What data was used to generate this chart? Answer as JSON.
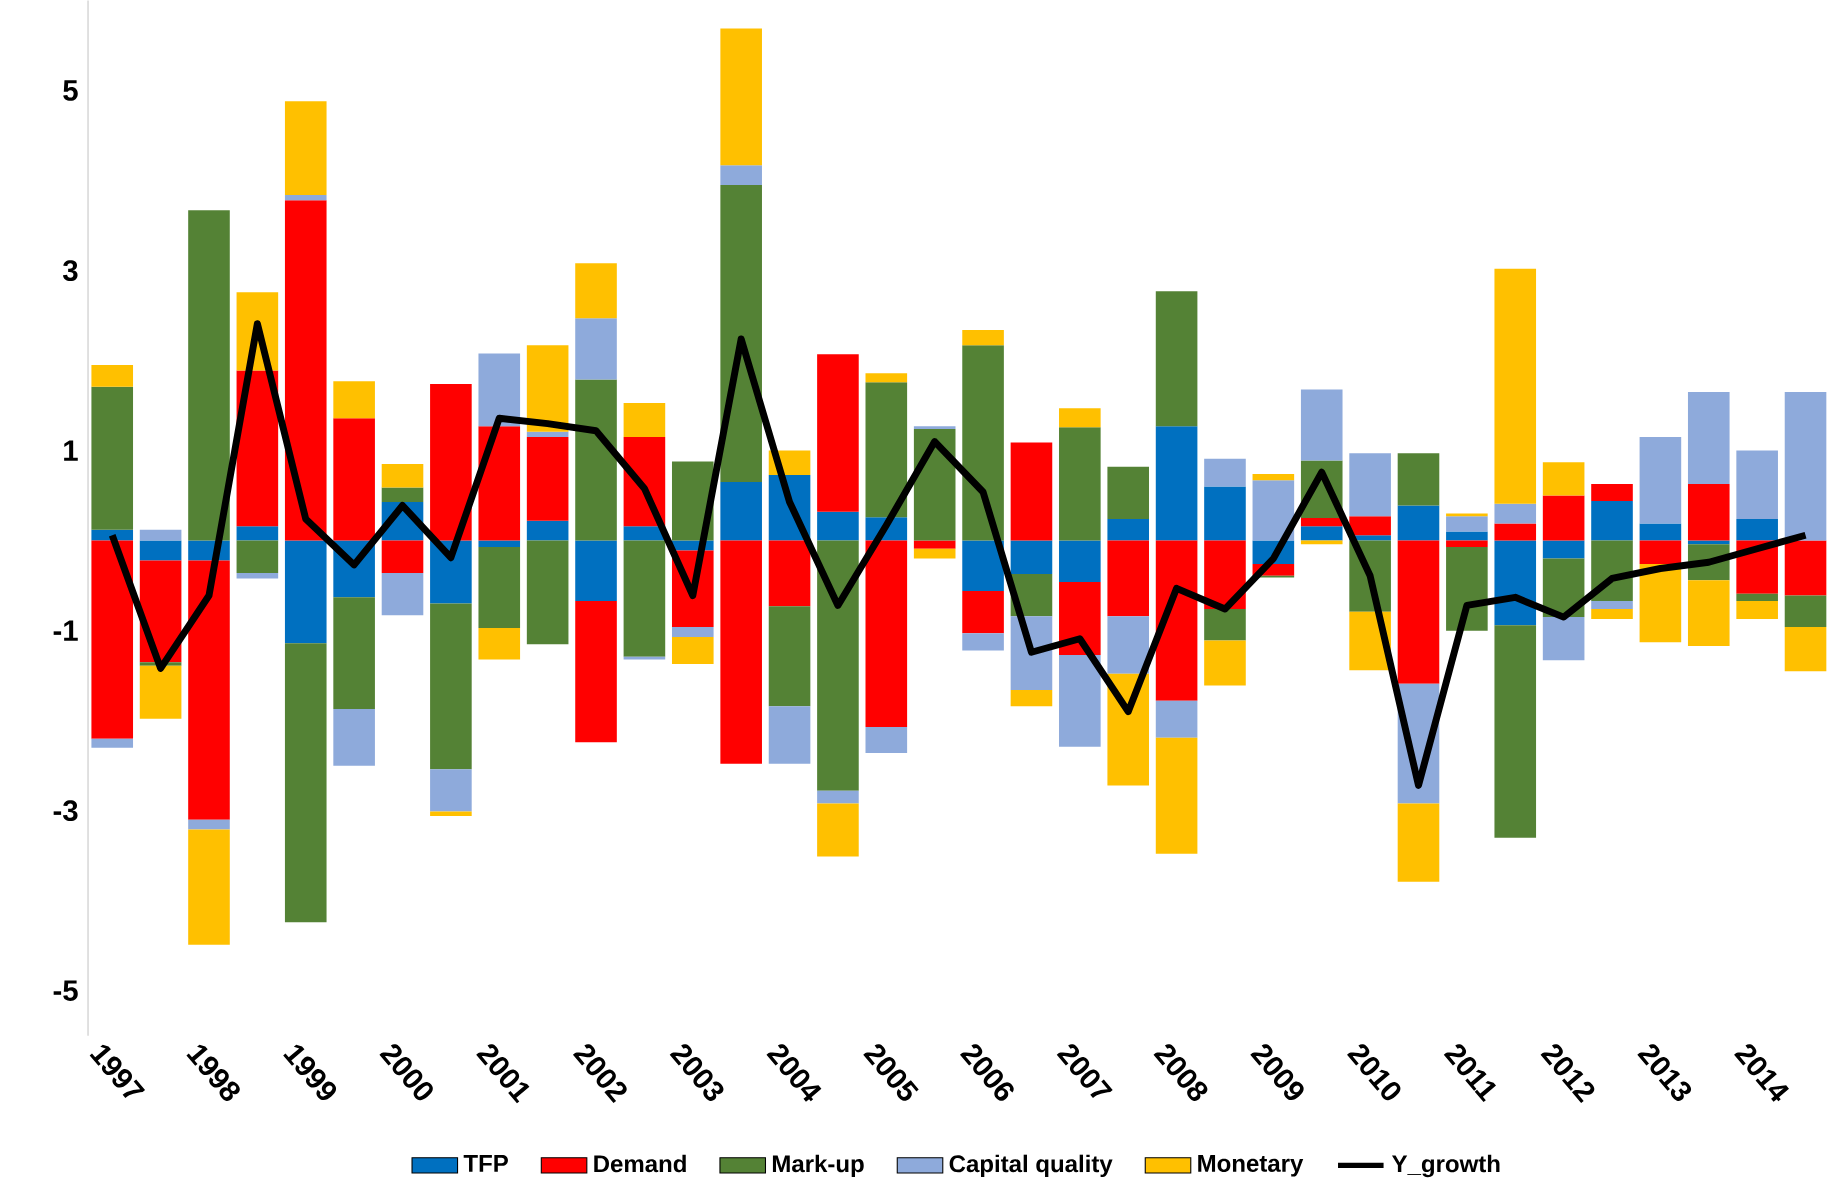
{
  "chart_data": {
    "type": "bar",
    "stacked": true,
    "legend": "bottom",
    "categories": [
      "1997",
      null,
      "1998",
      null,
      "1999",
      null,
      "2000",
      null,
      "2001",
      null,
      "2002",
      null,
      "2003",
      null,
      "2004",
      null,
      "2005",
      null,
      "2006",
      null,
      "2007",
      null,
      "2008",
      null,
      "2009",
      null,
      "2010",
      null,
      "2011",
      null,
      "2012",
      null,
      "2013",
      null,
      "2014",
      null
    ],
    "ylim": [
      -5.5,
      6
    ],
    "yticks": [
      -5,
      -3,
      -1,
      1,
      3,
      5
    ],
    "series": [
      {
        "name": "TFP",
        "color": "#0070c0",
        "values": [
          0.12,
          -0.22,
          -0.22,
          0.16,
          -1.14,
          -0.63,
          0.43,
          -0.7,
          -0.07,
          0.22,
          -0.67,
          0.16,
          -0.11,
          0.65,
          0.73,
          0.32,
          0.26,
          null,
          -0.56,
          -0.37,
          -0.46,
          0.24,
          1.27,
          0.6,
          -0.26,
          0.16,
          0.06,
          0.39,
          0.1,
          -0.94,
          -0.2,
          0.44,
          0.19,
          -0.04,
          0.24,
          null
        ]
      },
      {
        "name": "Demand",
        "color": "#ff0000",
        "values": [
          -2.2,
          -1.13,
          -2.88,
          1.73,
          3.78,
          1.36,
          -0.36,
          1.74,
          1.27,
          0.93,
          -1.57,
          0.99,
          -0.85,
          -2.48,
          -0.73,
          1.75,
          -2.07,
          -0.09,
          -0.47,
          1.09,
          -0.81,
          -0.84,
          -1.78,
          -0.76,
          -0.13,
          0.09,
          0.21,
          -1.59,
          -0.07,
          0.19,
          0.5,
          0.19,
          -0.26,
          0.63,
          -0.59,
          -0.61
        ]
      },
      {
        "name": "Mark-up",
        "color": "#548235",
        "values": [
          1.59,
          -0.04,
          3.67,
          -0.36,
          -3.1,
          -1.24,
          0.16,
          -1.84,
          -0.9,
          -1.15,
          1.79,
          -1.29,
          0.88,
          3.3,
          -1.11,
          -2.78,
          1.5,
          1.24,
          2.17,
          -0.47,
          1.26,
          0.58,
          1.5,
          -0.35,
          -0.02,
          0.64,
          -0.79,
          0.58,
          -0.93,
          -2.36,
          -0.65,
          -0.67,
          null,
          -0.4,
          -0.08,
          -0.35
        ]
      },
      {
        "name": "Capital quality",
        "color": "#8eaadb",
        "values": [
          -0.1,
          0.12,
          -0.11,
          -0.06,
          0.06,
          -0.63,
          -0.47,
          -0.47,
          0.81,
          0.06,
          0.68,
          -0.03,
          -0.11,
          0.22,
          -0.64,
          -0.14,
          -0.29,
          0.03,
          -0.19,
          -0.82,
          -1.02,
          -0.64,
          -0.41,
          0.31,
          0.67,
          0.79,
          0.7,
          -1.33,
          0.17,
          0.22,
          -0.48,
          -0.09,
          0.96,
          1.02,
          0.76,
          1.65
        ]
      },
      {
        "name": "Monetary",
        "color": "#ffc000",
        "values": [
          0.24,
          -0.59,
          -1.28,
          0.87,
          1.04,
          0.41,
          0.26,
          -0.05,
          -0.35,
          0.96,
          0.61,
          0.38,
          -0.3,
          1.52,
          0.27,
          -0.59,
          0.1,
          -0.11,
          0.17,
          -0.18,
          0.21,
          -1.24,
          -1.29,
          -0.5,
          0.07,
          -0.04,
          -0.65,
          -0.87,
          0.03,
          2.61,
          0.37,
          -0.11,
          -0.87,
          -0.73,
          -0.2,
          -0.49
        ]
      },
      {
        "name": "Y_growth",
        "type": "line",
        "color": "#000000",
        "values": [
          0.06,
          -1.42,
          -0.61,
          2.41,
          0.24,
          -0.27,
          0.39,
          -0.19,
          1.36,
          1.3,
          1.22,
          0.58,
          -0.61,
          2.24,
          0.43,
          -0.72,
          0.17,
          1.1,
          0.54,
          -1.24,
          -1.09,
          -1.9,
          -0.53,
          -0.76,
          -0.2,
          0.76,
          -0.39,
          -2.72,
          -0.72,
          -0.63,
          -0.85,
          -0.42,
          -0.31,
          -0.24,
          -0.09,
          0.06
        ]
      }
    ]
  }
}
